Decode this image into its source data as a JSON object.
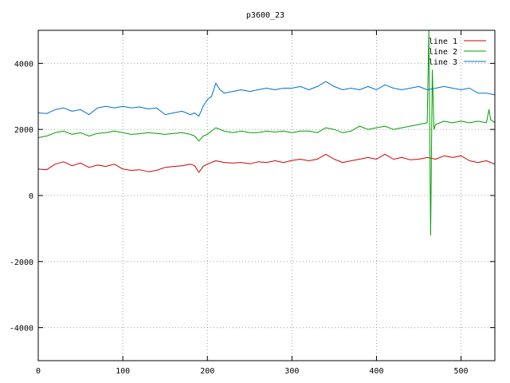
{
  "chart_data": {
    "type": "line",
    "title": "p3600_23",
    "xlabel": "",
    "ylabel": "",
    "xlim": [
      0,
      540
    ],
    "ylim": [
      -5000,
      5000
    ],
    "xticks": [
      0,
      100,
      200,
      300,
      400,
      500
    ],
    "yticks": [
      -4000,
      -2000,
      0,
      2000,
      4000
    ],
    "grid": true,
    "legend_position": "top-right",
    "series": [
      {
        "name": "line 1",
        "color": "#d00000",
        "x": [
          0,
          10,
          20,
          30,
          40,
          50,
          60,
          70,
          80,
          90,
          100,
          110,
          120,
          130,
          140,
          150,
          160,
          170,
          180,
          185,
          190,
          195,
          200,
          210,
          220,
          230,
          240,
          250,
          260,
          270,
          280,
          290,
          300,
          310,
          320,
          330,
          340,
          350,
          360,
          370,
          380,
          390,
          400,
          410,
          420,
          430,
          440,
          450,
          460,
          470,
          480,
          490,
          500,
          510,
          520,
          530,
          540
        ],
        "values": [
          800,
          780,
          950,
          1020,
          900,
          980,
          850,
          920,
          880,
          950,
          800,
          760,
          780,
          720,
          760,
          850,
          880,
          900,
          950,
          900,
          700,
          880,
          950,
          1050,
          1000,
          980,
          1000,
          960,
          1020,
          1000,
          1050,
          1000,
          1060,
          1100,
          1050,
          1100,
          1250,
          1100,
          1000,
          1050,
          1100,
          1150,
          1100,
          1250,
          1100,
          1150,
          1080,
          1100,
          1150,
          1100,
          1200,
          1150,
          1200,
          1050,
          1000,
          1050,
          950
        ]
      },
      {
        "name": "line 2",
        "color": "#00a000",
        "x": [
          0,
          10,
          20,
          30,
          40,
          50,
          60,
          70,
          80,
          90,
          100,
          110,
          120,
          130,
          140,
          150,
          160,
          170,
          180,
          185,
          190,
          195,
          200,
          210,
          220,
          230,
          240,
          250,
          260,
          270,
          280,
          290,
          300,
          310,
          320,
          330,
          340,
          350,
          360,
          370,
          380,
          390,
          400,
          410,
          420,
          430,
          440,
          450,
          460,
          462,
          464,
          466,
          468,
          470,
          480,
          490,
          500,
          510,
          520,
          530,
          533,
          535,
          540
        ],
        "values": [
          1750,
          1800,
          1900,
          1950,
          1850,
          1900,
          1800,
          1880,
          1900,
          1950,
          1900,
          1850,
          1870,
          1900,
          1880,
          1850,
          1880,
          1900,
          1850,
          1800,
          1650,
          1800,
          1850,
          2050,
          1950,
          1900,
          1950,
          1900,
          1900,
          1950,
          1920,
          1950,
          1900,
          1950,
          1950,
          1900,
          2050,
          2000,
          1900,
          1950,
          2100,
          2000,
          2050,
          2100,
          2000,
          2050,
          2100,
          2150,
          2200,
          5000,
          -1200,
          3800,
          2000,
          2150,
          2250,
          2200,
          2250,
          2200,
          2250,
          2200,
          2600,
          2300,
          2200
        ]
      },
      {
        "name": "line 3",
        "color": "#0070d0",
        "x": [
          0,
          10,
          20,
          30,
          40,
          50,
          60,
          70,
          80,
          90,
          100,
          110,
          120,
          130,
          140,
          150,
          160,
          170,
          180,
          185,
          190,
          195,
          200,
          205,
          210,
          215,
          220,
          230,
          240,
          250,
          260,
          270,
          280,
          290,
          300,
          310,
          320,
          330,
          340,
          350,
          360,
          370,
          380,
          390,
          400,
          410,
          420,
          430,
          440,
          450,
          460,
          470,
          480,
          490,
          500,
          510,
          520,
          530,
          540
        ],
        "values": [
          2500,
          2480,
          2600,
          2650,
          2550,
          2600,
          2450,
          2650,
          2700,
          2650,
          2700,
          2650,
          2680,
          2620,
          2650,
          2450,
          2500,
          2550,
          2450,
          2500,
          2400,
          2700,
          2900,
          3000,
          3400,
          3200,
          3100,
          3150,
          3200,
          3150,
          3200,
          3250,
          3200,
          3250,
          3250,
          3300,
          3200,
          3300,
          3450,
          3300,
          3200,
          3250,
          3200,
          3300,
          3200,
          3350,
          3250,
          3200,
          3250,
          3300,
          3200,
          3250,
          3300,
          3250,
          3200,
          3250,
          3100,
          3100,
          3050
        ]
      }
    ]
  }
}
